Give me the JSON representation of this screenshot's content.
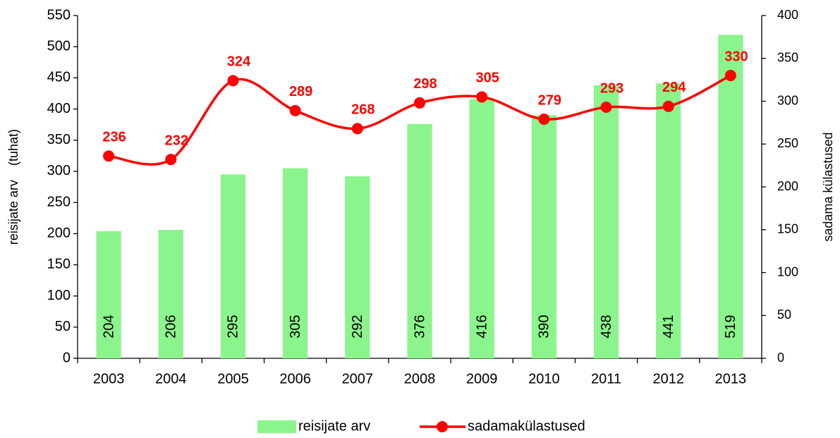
{
  "chart_data": {
    "type": "bar",
    "categories": [
      "2003",
      "2004",
      "2005",
      "2006",
      "2007",
      "2008",
      "2009",
      "2010",
      "2011",
      "2012",
      "2013"
    ],
    "series": [
      {
        "name": "reisijate arv",
        "type": "bar",
        "color": "#8cf48c",
        "values": [
          204,
          206,
          295,
          305,
          292,
          376,
          416,
          390,
          438,
          441,
          519
        ]
      },
      {
        "name": "sadamakülastused",
        "type": "line",
        "axis": "y2",
        "color": "#ff0000",
        "smooth": true,
        "values": [
          236,
          232,
          324,
          289,
          268,
          298,
          305,
          279,
          293,
          294,
          330
        ]
      }
    ],
    "ylabel": "reisijate arv    (tuhat)",
    "y2label": "sadama külastused",
    "ylim": [
      0,
      550
    ],
    "yticks": [
      0,
      50,
      100,
      150,
      200,
      250,
      300,
      350,
      400,
      450,
      500,
      550
    ],
    "y2lim": [
      0,
      400
    ],
    "y2ticks": [
      0,
      50,
      100,
      150,
      200,
      250,
      300,
      350,
      400
    ],
    "grid": false,
    "legend": "bottom"
  }
}
